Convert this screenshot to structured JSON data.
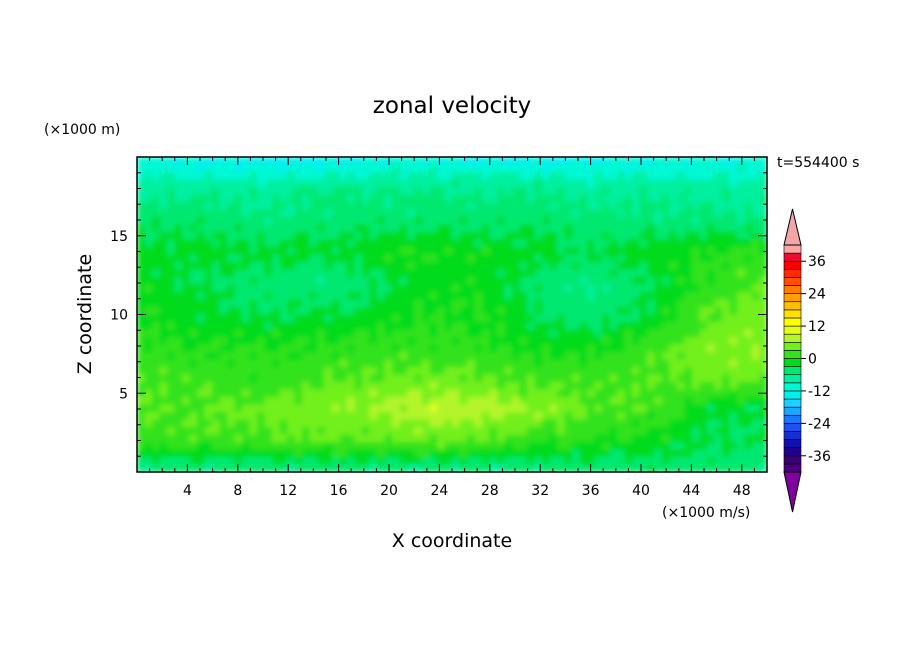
{
  "chart_data": {
    "type": "heatmap",
    "title": "zonal velocity",
    "xlabel": "X coordinate",
    "ylabel": "Z coordinate",
    "y_units": "(×1000 m)",
    "x_units": "(×1000 m/s)",
    "time_label": "t=554400 s",
    "xlim": [
      0,
      50
    ],
    "ylim": [
      0,
      20
    ],
    "x_ticks": [
      4,
      8,
      12,
      16,
      20,
      24,
      28,
      32,
      36,
      40,
      44,
      48
    ],
    "y_ticks": [
      5,
      10,
      15
    ],
    "colorbar": {
      "levels": [
        -42,
        -39,
        -36,
        -33,
        -30,
        -27,
        -24,
        -21,
        -18,
        -15,
        -12,
        -9,
        -6,
        -3,
        0,
        3,
        6,
        9,
        12,
        15,
        18,
        21,
        24,
        27,
        30,
        33,
        36,
        39,
        42
      ],
      "colors": [
        "#4b0082",
        "#3a006f",
        "#1f008f",
        "#1010b0",
        "#1830d0",
        "#2050f0",
        "#1a78ff",
        "#1ba6ff",
        "#1cd0ff",
        "#00f0f0",
        "#00f8d4",
        "#00f0a0",
        "#00e870",
        "#00dc1a",
        "#33e21a",
        "#72f01a",
        "#b3f52a",
        "#e6ff1a",
        "#ffff00",
        "#ffe000",
        "#ffc000",
        "#ffa000",
        "#ff7c00",
        "#ff5000",
        "#ff2a00",
        "#ff0000",
        "#ee0c30",
        "#f7a5a5"
      ],
      "tick_labels": [
        "36",
        "24",
        "12",
        "0",
        "-12",
        "-24",
        "-36"
      ],
      "tick_values": [
        36,
        24,
        12,
        0,
        -12,
        -24,
        -36
      ],
      "under_color": "#8000a0",
      "over_color": "#f4a6a6"
    },
    "z_grid": [
      [
        -6,
        -6,
        -6,
        -6,
        -6,
        -7,
        -7,
        -6,
        -5,
        -5,
        -5,
        -5
      ],
      [
        1,
        2,
        2,
        3,
        3,
        4,
        3,
        1,
        0,
        -1,
        -3,
        -3
      ],
      [
        3,
        3,
        4,
        5,
        6,
        8,
        8,
        6,
        3,
        2,
        -2,
        -3
      ],
      [
        2,
        2,
        1,
        2,
        3,
        4,
        3,
        2,
        2,
        3,
        4,
        4
      ],
      [
        1,
        0,
        0,
        0,
        1,
        1,
        0,
        -1,
        -1,
        2,
        5,
        6
      ],
      [
        0,
        -2,
        -3,
        -3,
        -2,
        0,
        0,
        -3,
        -5,
        -2,
        3,
        5
      ],
      [
        -1,
        -3,
        -4,
        -5,
        -4,
        -2,
        -1,
        -4,
        -6,
        -3,
        1,
        3
      ],
      [
        -2,
        -2,
        -2,
        -2,
        -1,
        0,
        -1,
        -2,
        -3,
        -1,
        0,
        1
      ],
      [
        -4,
        -4,
        -5,
        -5,
        -4,
        -4,
        -4,
        -4,
        -5,
        -5,
        -5,
        -6
      ],
      [
        -7,
        -7,
        -7,
        -6,
        -6,
        -6,
        -6,
        -6,
        -7,
        -7,
        -7,
        -7
      ],
      [
        -12,
        -13,
        -14,
        -14,
        -13,
        -12,
        -13,
        -14,
        -13,
        -12,
        -12,
        -12
      ]
    ]
  }
}
